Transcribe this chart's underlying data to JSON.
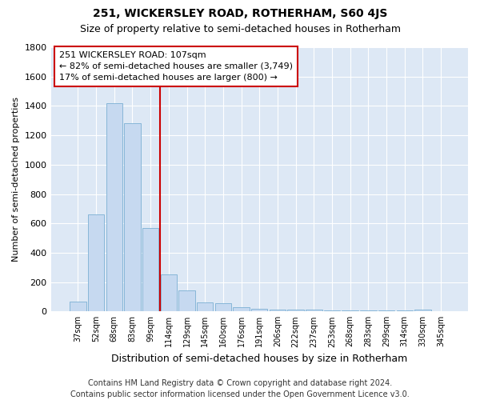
{
  "title": "251, WICKERSLEY ROAD, ROTHERHAM, S60 4JS",
  "subtitle": "Size of property relative to semi-detached houses in Rotherham",
  "xlabel": "Distribution of semi-detached houses by size in Rotherham",
  "ylabel": "Number of semi-detached properties",
  "categories": [
    "37sqm",
    "52sqm",
    "68sqm",
    "83sqm",
    "99sqm",
    "114sqm",
    "129sqm",
    "145sqm",
    "160sqm",
    "176sqm",
    "191sqm",
    "206sqm",
    "222sqm",
    "237sqm",
    "253sqm",
    "268sqm",
    "283sqm",
    "299sqm",
    "314sqm",
    "330sqm",
    "345sqm"
  ],
  "values": [
    65,
    660,
    1420,
    1280,
    570,
    255,
    145,
    60,
    55,
    30,
    18,
    15,
    10,
    10,
    8,
    5,
    5,
    8,
    5,
    15,
    0
  ],
  "bar_color": "#c6d9f0",
  "bar_edge_color": "#7bafd4",
  "vline_x": 4.5,
  "vline_color": "#cc0000",
  "annotation_text": "251 WICKERSLEY ROAD: 107sqm\n← 82% of semi-detached houses are smaller (3,749)\n17% of semi-detached houses are larger (800) →",
  "annotation_box_color": "#ffffff",
  "annotation_box_edge": "#cc0000",
  "ylim": [
    0,
    1800
  ],
  "yticks": [
    0,
    200,
    400,
    600,
    800,
    1000,
    1200,
    1400,
    1600,
    1800
  ],
  "bg_color": "#dde8f5",
  "plot_bg_color": "#dde8f5",
  "footer": "Contains HM Land Registry data © Crown copyright and database right 2024.\nContains public sector information licensed under the Open Government Licence v3.0.",
  "title_fontsize": 10,
  "subtitle_fontsize": 9,
  "xlabel_fontsize": 9,
  "ylabel_fontsize": 8,
  "footer_fontsize": 7,
  "annot_fontsize": 8
}
